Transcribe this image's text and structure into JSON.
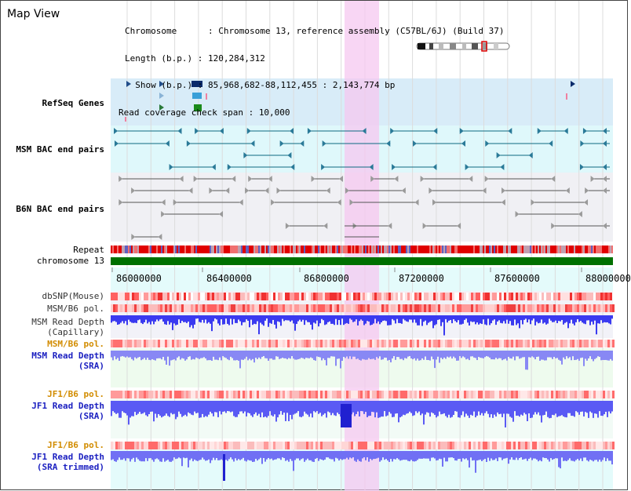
{
  "page": {
    "title": "Map View"
  },
  "info": {
    "rows": [
      {
        "label": "Chromosome      : ",
        "value": "Chromosome 13, reference assembly (C57BL/6J) (Build 37)"
      },
      {
        "label": "Length (b.p.) : ",
        "value": "120,284,312"
      },
      {
        "label": "  Show (b.p.) : ",
        "value": "85,968,682-88,112,455 : 2,143,774 bp"
      },
      {
        "label": "Read coverage check span : ",
        "value": "10,000"
      }
    ]
  },
  "tracks": {
    "refseq": "RefSeq Genes",
    "msm_bac": "MSM BAC end pairs",
    "b6n_bac": "B6N BAC end pairs",
    "repeat": "Repeat",
    "chromosome": "chromosome 13",
    "dbsnp": "dbSNP(Mouse)",
    "msm_b6_pol": "MSM/B6 pol.",
    "msm_read_depth_1": "MSM Read Depth",
    "msm_read_depth_1b": "(Capillary)",
    "msm_b6_pol_sra": "MSM/B6 pol.",
    "msm_read_depth_2": "MSM Read Depth",
    "msm_read_depth_2b": "(SRA)",
    "jf1_b6_pol": "JF1/B6 pol.",
    "jf1_read_depth": "JF1 Read Depth",
    "jf1_read_depth_b": "(SRA)",
    "jf1_b6_pol_2": "JF1/B6 pol.",
    "jf1_read_depth_trim": "JF1 Read Depth",
    "jf1_read_depth_trim_b": "(SRA trimmed)"
  },
  "axis": {
    "ticks": [
      "86000000",
      "86400000",
      "86800000",
      "87200000",
      "87600000",
      "88000000"
    ]
  },
  "colors": {
    "refseq_bg": "#d8ecf8",
    "msm_bg": "#dff8fb",
    "b6n_bg": "#f0f0f4",
    "highlight": "#f6c8f0",
    "refseq_label": "#1a2fa0",
    "msm_label": "#0c5a78",
    "b6n_label": "#555555",
    "pol_label_orange": "#d28c00",
    "depth_label_blue": "#1a1fc0",
    "chromosome_bar": "#007000"
  }
}
